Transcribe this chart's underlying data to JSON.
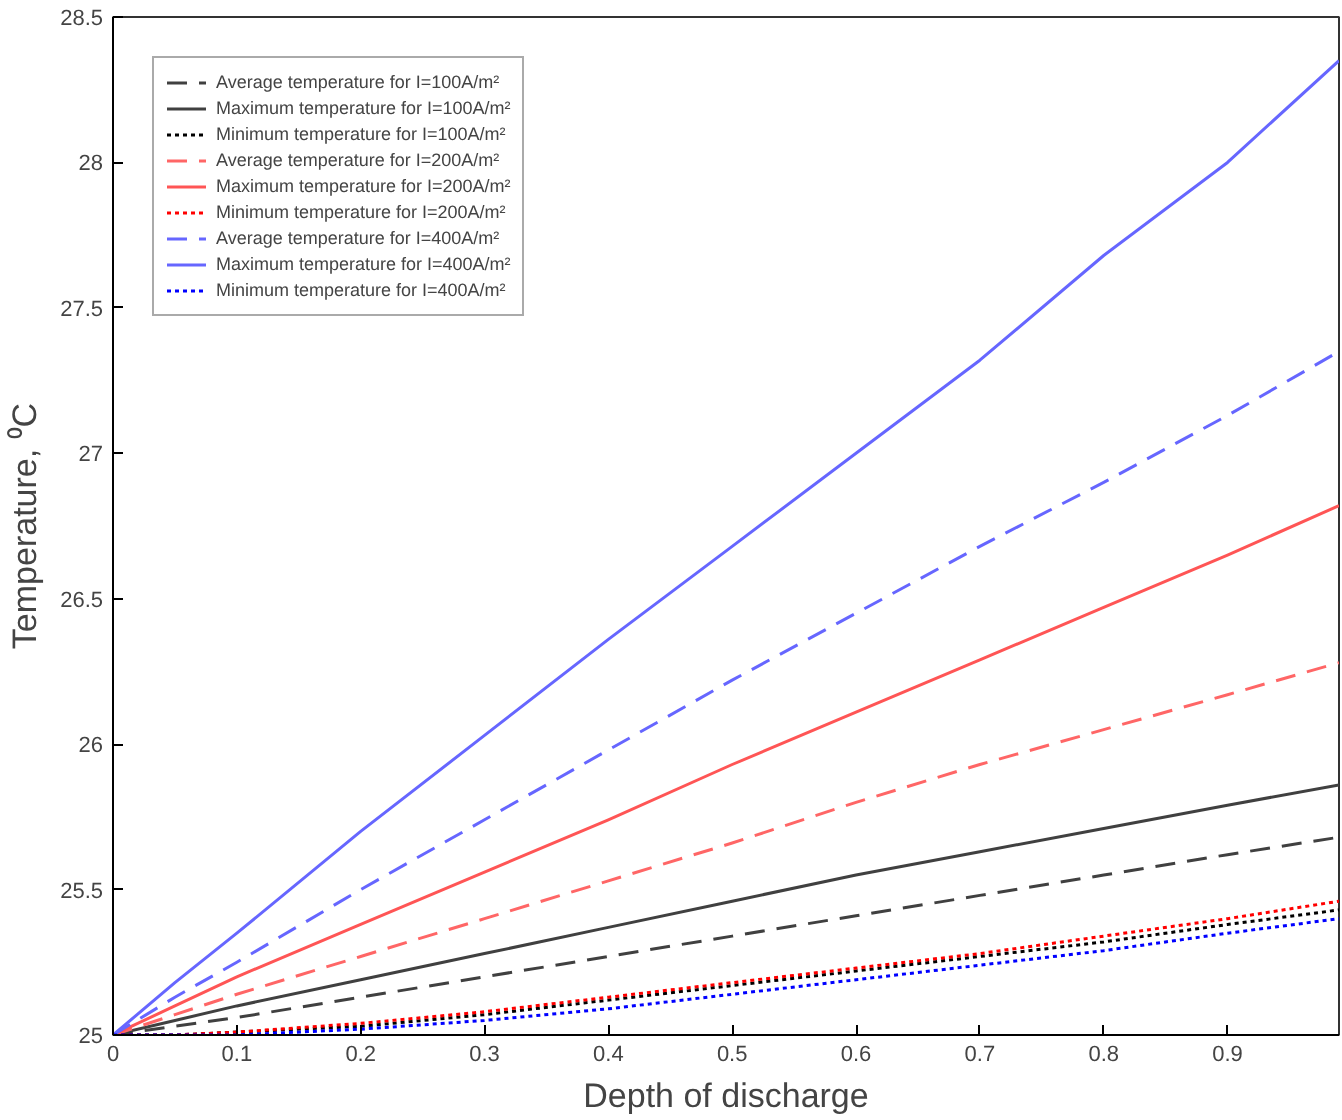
{
  "chart_data": {
    "type": "line",
    "xlabel": "Depth of discharge",
    "ylabel": "Temperature, ⁰C",
    "x": [
      0,
      0.05,
      0.1,
      0.2,
      0.3,
      0.4,
      0.5,
      0.6,
      0.7,
      0.8,
      0.9,
      0.99
    ],
    "xlim": [
      0,
      0.99
    ],
    "xticks": [
      0,
      0.1,
      0.2,
      0.3,
      0.4,
      0.5,
      0.6,
      0.7,
      0.8,
      0.9
    ],
    "ylim": [
      25,
      28.5
    ],
    "yticks": [
      25,
      25.5,
      26,
      26.5,
      27,
      27.5,
      28,
      28.5
    ],
    "grid": false,
    "legend": "top left",
    "marker": "none",
    "series": [
      {
        "name": "Average temperature for I=100A/m²",
        "color": "#404040",
        "line_style": "dashed",
        "values": [
          25,
          25.03,
          25.06,
          25.13,
          25.2,
          25.27,
          25.34,
          25.41,
          25.48,
          25.55,
          25.62,
          25.68
        ]
      },
      {
        "name": "Maximum temperature for I=100A/m²",
        "color": "#404040",
        "line_style": "solid",
        "values": [
          25,
          25.05,
          25.1,
          25.19,
          25.28,
          25.37,
          25.46,
          25.55,
          25.63,
          25.71,
          25.79,
          25.86
        ]
      },
      {
        "name": "Minimum temperature for I=100A/m²",
        "color": "#000000",
        "line_style": "dotted",
        "values": [
          25,
          25,
          25.01,
          25.03,
          25.07,
          25.12,
          25.17,
          25.22,
          25.27,
          25.32,
          25.38,
          25.43
        ]
      },
      {
        "name": "Average temperature for I=200A/m²",
        "color": "#ff6666",
        "line_style": "dashed",
        "values": [
          25,
          25.07,
          25.14,
          25.27,
          25.4,
          25.53,
          25.66,
          25.8,
          25.93,
          26.05,
          26.17,
          26.28
        ]
      },
      {
        "name": "Maximum temperature for I=200A/m²",
        "color": "#ff5555",
        "line_style": "solid",
        "values": [
          25,
          25.1,
          25.2,
          25.38,
          25.56,
          25.74,
          25.93,
          26.11,
          26.29,
          26.47,
          26.65,
          26.82
        ]
      },
      {
        "name": "Minimum temperature for I=200A/m²",
        "color": "#ff0000",
        "line_style": "dotted",
        "values": [
          25,
          25,
          25.01,
          25.04,
          25.08,
          25.13,
          25.18,
          25.23,
          25.28,
          25.34,
          25.4,
          25.46
        ]
      },
      {
        "name": "Average temperature for I=400A/m²",
        "color": "#6666ff",
        "line_style": "dashed",
        "values": [
          25,
          25.13,
          25.25,
          25.5,
          25.74,
          25.98,
          26.22,
          26.45,
          26.68,
          26.9,
          27.13,
          27.35
        ]
      },
      {
        "name": "Maximum temperature for I=400A/m²",
        "color": "#6666ff",
        "line_style": "solid",
        "values": [
          25,
          25.18,
          25.35,
          25.7,
          26.03,
          26.36,
          26.68,
          27.0,
          27.32,
          27.68,
          28.0,
          28.35
        ]
      },
      {
        "name": "Minimum temperature for I=400A/m²",
        "color": "#0000ff",
        "line_style": "dotted",
        "values": [
          25,
          25,
          25,
          25.02,
          25.05,
          25.09,
          25.14,
          25.19,
          25.24,
          25.29,
          25.35,
          25.4
        ]
      }
    ]
  }
}
